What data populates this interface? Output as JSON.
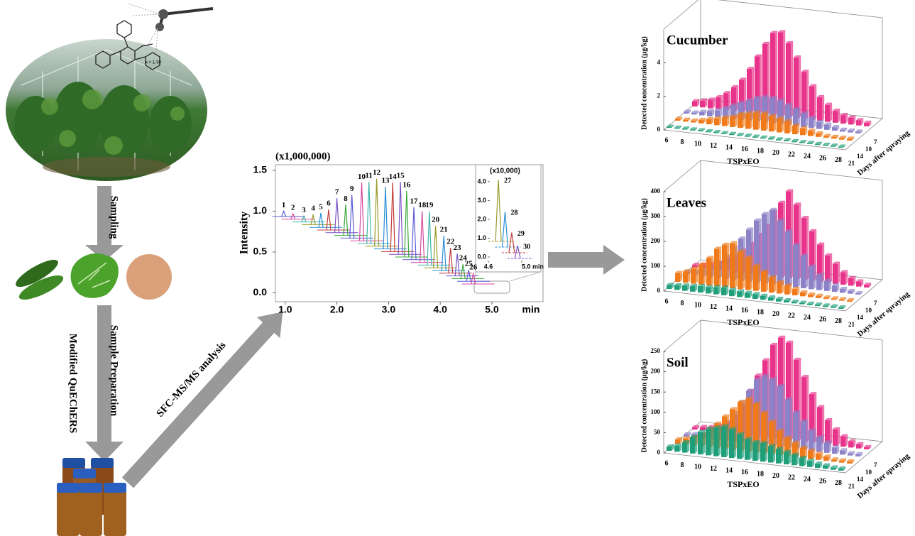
{
  "labels": {
    "sampling": "Sampling",
    "sample_preparation": "Sample Preparation",
    "quechers": "Modified QuEChERS",
    "analysis": "SFC-MS/MS analysis",
    "formula_note": "x = 1-30"
  },
  "chromatogram": {
    "type": "line",
    "multiplier": "(x1,000,000)",
    "y_label": "Intensity",
    "x_unit": "min",
    "xlim": [
      0.81,
      5.99
    ],
    "ylim": [
      -0.11,
      1.57
    ],
    "yticks": [
      1.5,
      {
        "value": 1.0,
        "label": "1.0"
      },
      0.5,
      {
        "value": 0.0,
        "label": "0.0"
      }
    ],
    "xticks": [
      {
        "value": 1.0,
        "label": "1.0"
      },
      {
        "value": 2.0,
        "label": "2.0"
      },
      {
        "value": 3.0,
        "label": "3.0"
      },
      {
        "value": 4.0,
        "label": "4.0"
      },
      {
        "value": 5.0,
        "label": "5.0"
      }
    ],
    "colors": [
      "#5b5bd6",
      "#d64aa0",
      "#3fb6a8",
      "#9a9a2a",
      "#2a8fd6",
      "#c23b3b",
      "#7a52c7",
      "#38a83c"
    ],
    "peaks": {
      "labels": [
        "1",
        "2",
        "3",
        "4",
        "5",
        "6",
        "7",
        "8",
        "9",
        "10",
        "11",
        "12",
        "13",
        "14",
        "15",
        "16",
        "17",
        "18",
        "19",
        "20",
        "21",
        "22",
        "23",
        "24",
        "25",
        "26"
      ],
      "times": [
        0.97,
        1.15,
        1.36,
        1.54,
        1.69,
        1.84,
        2.0,
        2.17,
        2.29,
        2.48,
        2.62,
        2.77,
        2.94,
        3.08,
        3.23,
        3.35,
        3.49,
        3.65,
        3.79,
        3.91,
        4.07,
        4.2,
        4.33,
        4.44,
        4.55,
        4.64
      ],
      "heights": [
        1.0,
        0.97,
        0.94,
        0.96,
        0.98,
        1.02,
        1.16,
        1.08,
        1.2,
        1.35,
        1.36,
        1.4,
        1.3,
        1.35,
        1.36,
        1.25,
        1.05,
        1.0,
        1.0,
        0.82,
        0.7,
        0.55,
        0.48,
        0.35,
        0.28,
        0.24
      ]
    },
    "inset": {
      "multiplier": "(x10,000)",
      "xlim": [
        4.447,
        5.23
      ],
      "ylim": [
        -0.79,
        4.9
      ],
      "yticks": [
        {
          "value": 4.0,
          "label": "4.0"
        },
        {
          "value": 3.0,
          "label": "3.0"
        },
        {
          "value": 2.0,
          "label": "2.0"
        },
        {
          "value": 1.0,
          "label": "1.0"
        },
        {
          "value": 0.0,
          "label": "0.0"
        }
      ],
      "xticks": [
        4.6,
        {
          "value": 5.0,
          "label": "5.0 min"
        }
      ],
      "peaks": {
        "labels": [
          "27",
          "28",
          "29",
          "30"
        ],
        "times": [
          4.72,
          4.8,
          4.88,
          4.95
        ],
        "heights": [
          4.1,
          2.4,
          1.3,
          0.6
        ]
      }
    }
  },
  "bar_charts": [
    {
      "type": "bar3d",
      "title": "Cucumber",
      "z_label": "Detected concentration (μg/kg)",
      "x_label": "TSPxEO",
      "y_label": "Days after spraying",
      "zlim": [
        0,
        6
      ],
      "zticks": [
        0,
        2,
        4
      ],
      "categories": [
        6,
        null,
        8,
        null,
        10,
        null,
        12,
        null,
        14,
        null,
        16,
        null,
        18,
        null,
        20,
        null,
        22,
        null,
        24,
        null,
        26,
        null,
        28
      ],
      "series": [
        {
          "name": "7",
          "color": "#e8338a",
          "values": [
            0.3,
            0.4,
            0.5,
            0.7,
            1.0,
            1.4,
            1.9,
            2.6,
            3.4,
            4.2,
            4.9,
            5.0,
            4.4,
            3.6,
            2.8,
            2.0,
            1.4,
            1.0,
            0.7,
            0.5,
            0.4,
            0.3,
            0.2
          ]
        },
        {
          "name": "10",
          "color": "#8c82c8",
          "values": [
            0.1,
            0.1,
            0.2,
            0.3,
            0.4,
            0.6,
            0.8,
            1.0,
            1.2,
            1.4,
            1.5,
            1.5,
            1.4,
            1.2,
            1.0,
            0.8,
            0.6,
            0.4,
            0.3,
            0.2,
            0.1,
            0.1,
            0.1
          ]
        },
        {
          "name": "14",
          "color": "#f07a1a",
          "values": [
            0.1,
            0.1,
            0.1,
            0.2,
            0.3,
            0.4,
            0.5,
            0.6,
            0.8,
            0.9,
            1.0,
            1.0,
            0.9,
            0.8,
            0.7,
            0.5,
            0.4,
            0.3,
            0.2,
            0.1,
            0.1,
            0.1,
            0.1
          ]
        },
        {
          "name": "21",
          "color": "#1f9e7a",
          "values": [
            0.05,
            0.05,
            0.05,
            0.05,
            0.05,
            0.05,
            0.05,
            0.05,
            0.05,
            0.05,
            0.05,
            0.05,
            0.05,
            0.05,
            0.05,
            0.05,
            0.05,
            0.05,
            0.05,
            0.05,
            0.05,
            0.05,
            0.05
          ]
        }
      ]
    },
    {
      "type": "bar3d",
      "title": "Leaves",
      "z_label": "Detected concentration (μg/kg)",
      "x_label": "TSPxEO",
      "y_label": "Days after spraying",
      "zlim": [
        0,
        400
      ],
      "zticks": [
        0,
        100,
        200,
        300,
        400
      ],
      "categories": [
        6,
        null,
        8,
        null,
        10,
        null,
        12,
        null,
        14,
        null,
        16,
        null,
        18,
        null,
        20,
        null,
        22,
        null,
        24,
        null,
        26,
        null,
        28
      ],
      "series": [
        {
          "name": "7",
          "color": "#e8338a",
          "values": [
            10,
            15,
            20,
            30,
            45,
            60,
            90,
            120,
            160,
            200,
            260,
            300,
            350,
            300,
            250,
            200,
            150,
            110,
            80,
            50,
            30,
            20,
            10
          ]
        },
        {
          "name": "10",
          "color": "#8c82c8",
          "values": [
            10,
            15,
            25,
            40,
            60,
            90,
            130,
            170,
            210,
            250,
            280,
            300,
            260,
            220,
            170,
            130,
            90,
            60,
            40,
            25,
            15,
            10,
            5
          ]
        },
        {
          "name": "14",
          "color": "#f07a1a",
          "values": [
            35,
            45,
            60,
            80,
            110,
            150,
            170,
            180,
            150,
            130,
            100,
            80,
            60,
            45,
            35,
            25,
            15,
            10,
            8,
            5,
            5,
            5,
            5
          ]
        },
        {
          "name": "21",
          "color": "#1f9e7a",
          "values": [
            15,
            18,
            20,
            22,
            25,
            25,
            28,
            30,
            25,
            22,
            20,
            18,
            15,
            12,
            10,
            8,
            6,
            5,
            5,
            5,
            5,
            5,
            5
          ]
        }
      ]
    },
    {
      "type": "bar3d",
      "title": "Soil",
      "z_label": "Detected concentration (μg/kg)",
      "x_label": "TSPxEO",
      "y_label": "Days after spraying",
      "zlim": [
        0,
        250
      ],
      "zticks": [
        0,
        50,
        100,
        150,
        200,
        250
      ],
      "categories": [
        6,
        null,
        8,
        null,
        10,
        null,
        12,
        null,
        14,
        null,
        16,
        null,
        18,
        null,
        20,
        null,
        22,
        null,
        24,
        null,
        26,
        null,
        28
      ],
      "series": [
        {
          "name": "7",
          "color": "#e8338a",
          "values": [
            5,
            8,
            10,
            15,
            25,
            40,
            70,
            110,
            150,
            190,
            230,
            250,
            240,
            200,
            160,
            120,
            90,
            60,
            40,
            25,
            15,
            10,
            5
          ]
        },
        {
          "name": "10",
          "color": "#8c82c8",
          "values": [
            5,
            8,
            10,
            15,
            25,
            45,
            70,
            100,
            130,
            160,
            170,
            165,
            150,
            120,
            90,
            70,
            50,
            35,
            25,
            15,
            10,
            5,
            5
          ]
        },
        {
          "name": "14",
          "color": "#f07a1a",
          "values": [
            10,
            15,
            20,
            30,
            45,
            60,
            80,
            100,
            120,
            130,
            120,
            100,
            80,
            60,
            45,
            35,
            25,
            20,
            15,
            10,
            5,
            5,
            5
          ]
        },
        {
          "name": "21",
          "color": "#1f9e7a",
          "values": [
            10,
            15,
            25,
            40,
            55,
            65,
            70,
            75,
            70,
            60,
            50,
            45,
            45,
            40,
            35,
            30,
            25,
            20,
            15,
            10,
            8,
            5,
            5
          ]
        }
      ]
    }
  ]
}
